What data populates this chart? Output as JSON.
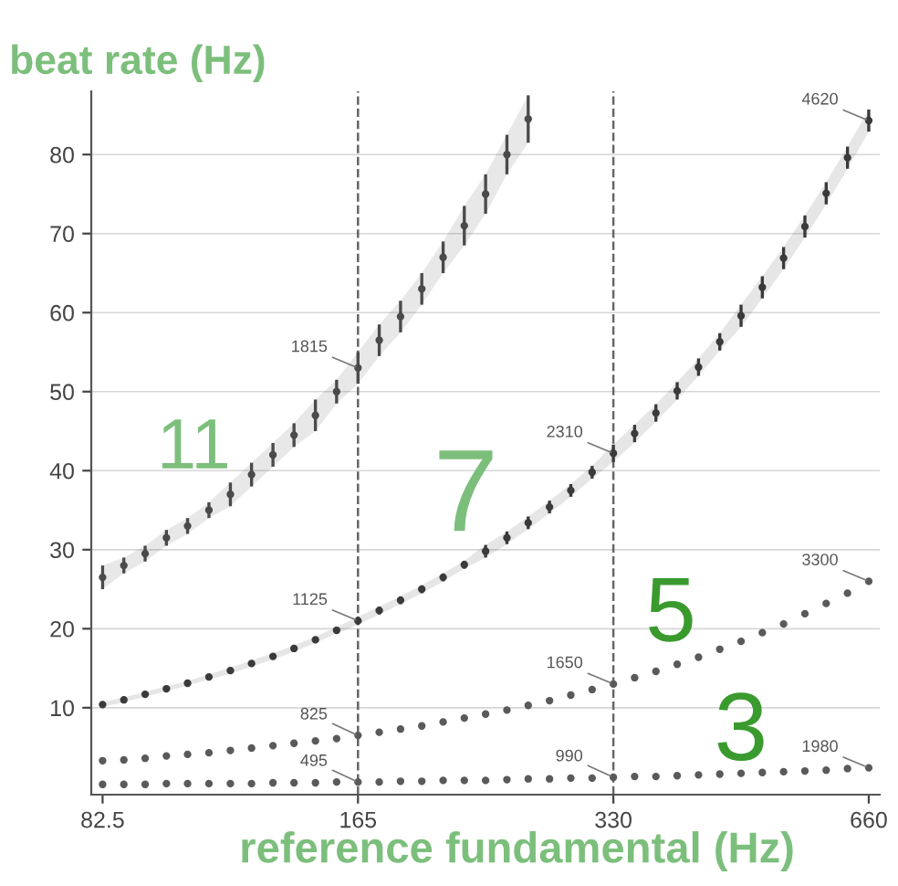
{
  "chart_data": {
    "type": "scatter",
    "xlabel": "reference fundamental (Hz)",
    "ylabel": "beat rate (Hz)",
    "log": "x",
    "grid": "y",
    "xlim": [
      80,
      680
    ],
    "ylim": [
      -1,
      88
    ],
    "xticks": [
      82.5,
      165,
      330,
      660
    ],
    "yticks": [
      10,
      20,
      30,
      40,
      50,
      60,
      70,
      80
    ],
    "x": [
      82.5,
      87.4,
      92.6,
      98.1,
      103.9,
      110.1,
      116.7,
      123.6,
      131.0,
      138.7,
      147.0,
      155.7,
      165,
      174.8,
      185.2,
      196.2,
      207.9,
      220.2,
      233.3,
      247.2,
      261.9,
      277.5,
      294.0,
      311.5,
      330,
      349.6,
      370.4,
      392.4,
      415.8,
      440.5,
      466.7,
      494.4,
      523.8,
      555.0,
      588.0,
      623.0,
      660
    ],
    "series": [
      {
        "name": "11",
        "color": "#4a4a4a",
        "marker": "circle",
        "values": [
          26.5,
          28,
          29.5,
          31.5,
          33,
          35,
          37,
          39.5,
          42,
          44.5,
          47,
          50,
          53,
          56.5,
          59.5,
          63,
          67,
          71,
          75,
          80,
          84.5,
          null,
          null,
          null,
          null,
          null,
          null,
          null,
          null,
          null,
          null,
          null,
          null,
          null,
          null,
          null,
          null
        ],
        "errors": [
          1.5,
          1,
          1,
          1,
          1,
          1,
          1.5,
          1.5,
          1.5,
          1.5,
          2,
          1.5,
          2,
          2,
          2,
          2,
          2,
          2.5,
          2.5,
          2.5,
          3,
          null,
          null,
          null,
          null,
          null,
          null,
          null,
          null,
          null,
          null,
          null,
          null,
          null,
          null,
          null,
          null
        ],
        "lower": [
          25,
          27,
          28.5,
          30.5,
          32,
          34,
          35.5,
          38,
          40.5,
          43,
          45,
          48.5,
          51,
          54.5,
          57.5,
          61,
          65,
          68.5,
          72.5,
          77.5,
          81.5,
          null,
          null,
          null,
          null,
          null,
          null,
          null,
          null,
          null,
          null,
          null,
          null,
          null,
          null,
          null,
          null
        ],
        "upper": [
          28,
          29,
          30.5,
          32.5,
          34,
          36,
          38.5,
          41,
          43.5,
          46,
          49,
          51.5,
          55,
          58.5,
          61.5,
          65,
          69,
          73.5,
          77.5,
          82.5,
          87.5,
          null,
          null,
          null,
          null,
          null,
          null,
          null,
          null,
          null,
          null,
          null,
          null,
          null,
          null,
          null,
          null
        ]
      },
      {
        "name": "7",
        "color": "#3a3a3a",
        "marker": "circle",
        "values": [
          10.4,
          11.0,
          11.7,
          12.4,
          13.1,
          13.9,
          14.7,
          15.6,
          16.5,
          17.5,
          18.6,
          19.8,
          21.0,
          22.3,
          23.6,
          25.0,
          26.5,
          28.1,
          29.8,
          31.5,
          33.4,
          35.4,
          37.5,
          39.8,
          42.2,
          44.7,
          47.3,
          50.1,
          53.1,
          56.3,
          59.6,
          63.2,
          66.9,
          70.9,
          75.1,
          79.6,
          84.3
        ],
        "errors": [
          0.3,
          0.3,
          0.3,
          0.3,
          0.3,
          0.3,
          0.4,
          0.4,
          0.4,
          0.4,
          0.4,
          0.4,
          0.5,
          0.5,
          0.5,
          0.5,
          0.5,
          0.5,
          0.8,
          0.8,
          0.8,
          0.8,
          0.8,
          0.8,
          1.1,
          1.1,
          1.1,
          1.1,
          1.1,
          1.1,
          1.4,
          1.4,
          1.4,
          1.4,
          1.4,
          1.4,
          1.4
        ],
        "lower": [
          10.1,
          10.7,
          11.4,
          12.1,
          12.8,
          13.6,
          14.3,
          15.2,
          16.1,
          17.1,
          18.2,
          19.4,
          20.5,
          21.8,
          23.1,
          24.5,
          26.0,
          27.6,
          29.0,
          30.7,
          32.6,
          34.6,
          36.7,
          39.0,
          41.1,
          43.6,
          46.2,
          49.0,
          52.0,
          55.2,
          58.2,
          61.8,
          65.5,
          69.5,
          73.7,
          78.2,
          82.9
        ],
        "upper": [
          10.7,
          11.3,
          12.0,
          12.7,
          13.4,
          14.2,
          15.1,
          16.0,
          16.9,
          17.9,
          19.0,
          20.2,
          21.5,
          22.8,
          24.1,
          25.5,
          27.0,
          28.6,
          30.6,
          32.3,
          34.2,
          36.2,
          38.3,
          40.6,
          43.3,
          45.8,
          48.4,
          51.2,
          54.2,
          57.4,
          61.0,
          64.6,
          68.3,
          72.3,
          76.5,
          81.0,
          85.7
        ]
      },
      {
        "name": "5",
        "color": "#5a5a5a",
        "marker": "circle",
        "values": [
          3.3,
          3.4,
          3.6,
          3.9,
          4.1,
          4.3,
          4.6,
          4.9,
          5.2,
          5.5,
          5.8,
          6.1,
          6.5,
          6.9,
          7.3,
          7.7,
          8.2,
          8.7,
          9.2,
          9.7,
          10.3,
          10.9,
          11.6,
          12.3,
          13.0,
          13.8,
          14.6,
          15.5,
          16.4,
          17.4,
          18.4,
          19.5,
          20.6,
          21.9,
          23.2,
          24.5,
          26.0
        ]
      },
      {
        "name": "3",
        "color": "#5a5a5a",
        "marker": "circle",
        "values": [
          0.3,
          0.3,
          0.3,
          0.4,
          0.4,
          0.4,
          0.4,
          0.4,
          0.5,
          0.5,
          0.5,
          0.6,
          0.6,
          0.6,
          0.7,
          0.7,
          0.8,
          0.8,
          0.8,
          0.9,
          1.0,
          1.0,
          1.1,
          1.1,
          1.2,
          1.3,
          1.3,
          1.4,
          1.5,
          1.6,
          1.7,
          1.8,
          1.9,
          2.0,
          2.1,
          2.3,
          2.4
        ]
      }
    ],
    "ref_lines": [
      {
        "axis": "x",
        "value": 165,
        "line_style": "dashed",
        "color": "#666666"
      },
      {
        "axis": "x",
        "value": 330,
        "line_style": "dashed",
        "color": "#666666"
      }
    ],
    "annotations": [
      {
        "text": "1815",
        "x": 165,
        "y": 53
      },
      {
        "text": "1125",
        "x": 165,
        "y": 21.0
      },
      {
        "text": "825",
        "x": 165,
        "y": 6.5
      },
      {
        "text": "495",
        "x": 165,
        "y": 0.6
      },
      {
        "text": "2310",
        "x": 330,
        "y": 42.2
      },
      {
        "text": "1650",
        "x": 330,
        "y": 13.0
      },
      {
        "text": "990",
        "x": 330,
        "y": 1.2
      },
      {
        "text": "4620",
        "x": 660,
        "y": 84.3
      },
      {
        "text": "3300",
        "x": 660,
        "y": 26.0
      },
      {
        "text": "1980",
        "x": 660,
        "y": 2.4
      }
    ]
  }
}
